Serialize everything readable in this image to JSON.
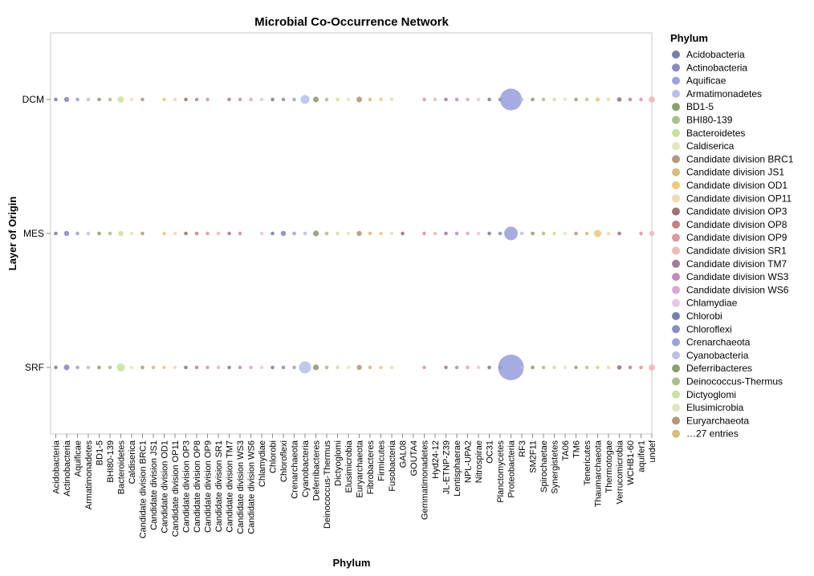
{
  "chart_data": {
    "type": "scatter",
    "title": "Microbial Co-Occurrence Network",
    "xlabel": "Phylum",
    "ylabel": "Layer of Origin",
    "categories": [
      "Acidobacteria",
      "Actinobacteria",
      "Aquificae",
      "Armatimonadetes",
      "BD1-5",
      "BHI80-139",
      "Bacteroidetes",
      "Caldiserica",
      "Candidate division BRC1",
      "Candidate division JS1",
      "Candidate division OD1",
      "Candidate division OP11",
      "Candidate division OP3",
      "Candidate division OP8",
      "Candidate division OP9",
      "Candidate division SR1",
      "Candidate division TM7",
      "Candidate division WS3",
      "Candidate division WS6",
      "Chlamydiae",
      "Chlorobi",
      "Chloroflexi",
      "Crenarchaeota",
      "Cyanobacteria",
      "Deferribacteres",
      "Deinococcus-Thermus",
      "Dictyoglomi",
      "Elusimicrobia",
      "Euryarchaeota",
      "Fibrobacteres",
      "Firmicutes",
      "Fusobacteria",
      "GAL08",
      "GOUTA4",
      "Gemmatimonadetes",
      "Hyd24-12",
      "JL-ETNP-Z39",
      "Lentisphaerae",
      "NPL-UPA2",
      "Nitrospirae",
      "OC31",
      "Planctomycetes",
      "Proteobacteria",
      "RF3",
      "SM2F11",
      "Spirochaetae",
      "Synergistetes",
      "TA06",
      "TM6",
      "Tenericutes",
      "Thaumarchaeota",
      "Thermotogae",
      "Verrucomicrobia",
      "WCHB1-60",
      "aquifer1",
      "undef"
    ],
    "layers": [
      "DCM",
      "MES",
      "SRF"
    ],
    "colors": [
      "#6a70a0",
      "#7b80ba",
      "#9097da",
      "#b3b9e6",
      "#7e9263",
      "#a2b77a",
      "#c7de93",
      "#d9e6b6",
      "#a88f6d",
      "#cfb66f",
      "#e9c46d",
      "#edd7a7",
      "#936264",
      "#c27276",
      "#dc8b92",
      "#ebb1b2",
      "#986e8e",
      "#bf7fb0",
      "#d99bd2",
      "#e7bfe3",
      "#6a70a0",
      "#7b80ba",
      "#9097da",
      "#b3b9e6",
      "#7e9263",
      "#a2b77a",
      "#c7de93",
      "#d9e6b6",
      "#a88f6d",
      "#cfb66f",
      "#e9c46d",
      "#edd7a7",
      "#936264",
      "#c27276",
      "#dc8b92",
      "#ebb1b2",
      "#986e8e",
      "#bf7fb0",
      "#d99bd2",
      "#e7bfe3",
      "#6a70a0",
      "#7b80ba",
      "#9097da",
      "#b3b9e6",
      "#7e9263",
      "#a2b77a",
      "#c7de93",
      "#d9e6b6",
      "#a88f6d",
      "#cfb66f",
      "#e9c46d",
      "#edd7a7",
      "#936264",
      "#c27276",
      "#dc8b92",
      "#ebb1b2"
    ],
    "size_scale": "relative count (1 = smallest dot)",
    "counts": {
      "DCM": [
        2,
        4,
        2,
        2,
        2,
        2,
        6,
        2,
        2,
        0,
        2,
        2,
        2,
        2,
        2,
        0,
        2,
        2,
        2,
        2,
        2,
        2,
        2,
        12,
        5,
        2,
        2,
        2,
        5,
        2,
        2,
        2,
        0,
        0,
        2,
        2,
        2,
        2,
        2,
        2,
        2,
        2,
        72,
        2,
        2,
        2,
        2,
        2,
        2,
        2,
        3,
        2,
        3,
        2,
        2,
        6
      ],
      "MES": [
        2,
        4,
        2,
        2,
        2,
        2,
        4,
        2,
        2,
        0,
        2,
        2,
        2,
        2,
        2,
        2,
        2,
        2,
        0,
        2,
        2,
        4,
        2,
        2,
        5,
        2,
        2,
        2,
        4,
        2,
        2,
        2,
        2,
        0,
        2,
        2,
        2,
        2,
        2,
        2,
        2,
        2,
        28,
        2,
        2,
        2,
        2,
        2,
        2,
        2,
        8,
        2,
        2,
        0,
        2,
        4
      ],
      "SRF": [
        2,
        5,
        2,
        2,
        2,
        2,
        10,
        2,
        2,
        2,
        2,
        2,
        2,
        2,
        2,
        2,
        2,
        2,
        2,
        2,
        2,
        2,
        2,
        22,
        5,
        2,
        2,
        2,
        4,
        2,
        2,
        2,
        0,
        0,
        2,
        0,
        2,
        2,
        2,
        2,
        2,
        2,
        100,
        2,
        2,
        2,
        2,
        2,
        2,
        2,
        2,
        2,
        3,
        2,
        2,
        6
      ]
    },
    "legend": {
      "title": "Phylum",
      "position": "right",
      "entries": [
        "Acidobacteria",
        "Actinobacteria",
        "Aquificae",
        "Armatimonadetes",
        "BD1-5",
        "BHI80-139",
        "Bacteroidetes",
        "Caldiserica",
        "Candidate division BRC1",
        "Candidate division JS1",
        "Candidate division OD1",
        "Candidate division OP11",
        "Candidate division OP3",
        "Candidate division OP8",
        "Candidate division OP9",
        "Candidate division SR1",
        "Candidate division TM7",
        "Candidate division WS3",
        "Candidate division WS6",
        "Chlamydiae",
        "Chlorobi",
        "Chloroflexi",
        "Crenarchaeota",
        "Cyanobacteria",
        "Deferribacteres",
        "Deinococcus-Thermus",
        "Dictyoglomi",
        "Elusimicrobia",
        "Euryarchaeota"
      ],
      "more_text": "…27 entries"
    },
    "grid": false
  }
}
